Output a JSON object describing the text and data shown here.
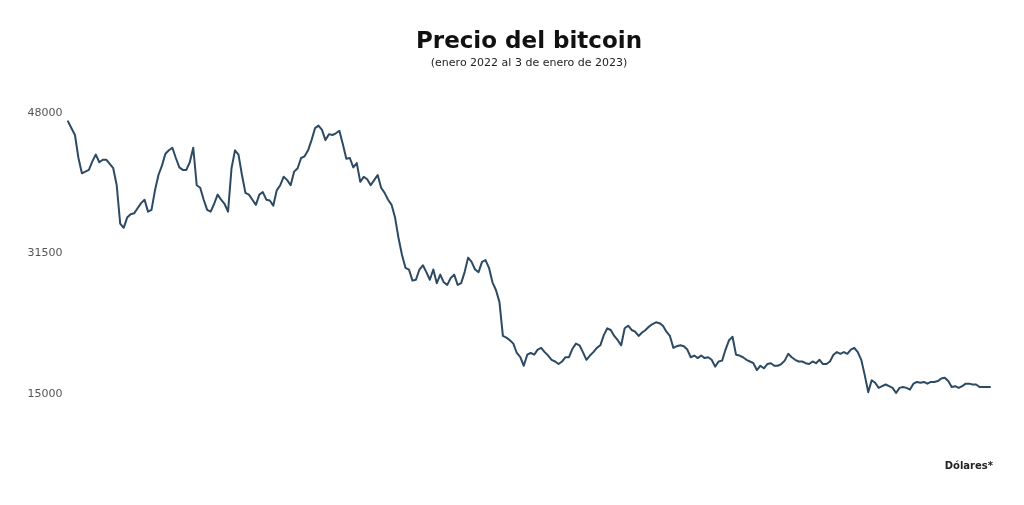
{
  "chart_data": {
    "type": "line",
    "title": "Precio del bitcoin",
    "subtitle": "(enero 2022 al 3 de enero de 2023)",
    "annotations": [
      "Dólares*"
    ],
    "categories": [
      null,
      null,
      null,
      null,
      null,
      null,
      null,
      null,
      null,
      null,
      null,
      null,
      null,
      null,
      null,
      null,
      null,
      null,
      null,
      null,
      null,
      null,
      null,
      null,
      null,
      null,
      null,
      null,
      null,
      null,
      null,
      null,
      null,
      null,
      null,
      null,
      null,
      null,
      null,
      null,
      null,
      null,
      null,
      null,
      null,
      null,
      null,
      null,
      null,
      null,
      null,
      null,
      null,
      null,
      null,
      null,
      null,
      null,
      null,
      null,
      null,
      null,
      null,
      null,
      null,
      null,
      null,
      null,
      null,
      null,
      null,
      null,
      null,
      null,
      null,
      null,
      null,
      null,
      null,
      null,
      null,
      null,
      null,
      null,
      null,
      null,
      null,
      null,
      null,
      null,
      null,
      null,
      null,
      null,
      null,
      null,
      null,
      null,
      null,
      null,
      null,
      null,
      null,
      null,
      null,
      null,
      null,
      null,
      null,
      null,
      null,
      null,
      null,
      null,
      null,
      null,
      null,
      null,
      null,
      null,
      null,
      null,
      null,
      null,
      null,
      null,
      null,
      null,
      null,
      null,
      null,
      null,
      null,
      null,
      null,
      null,
      null,
      null,
      null,
      null,
      null,
      null,
      null,
      null,
      null,
      null,
      null,
      null,
      null,
      null,
      null,
      null,
      null,
      null,
      null,
      null,
      null,
      null,
      null,
      null,
      null,
      null,
      null,
      null,
      null,
      null,
      null,
      null,
      null,
      null,
      null,
      null,
      null,
      null,
      null,
      null,
      null,
      null,
      null,
      null,
      null,
      null,
      null,
      null,
      null,
      null,
      null,
      null,
      null,
      null,
      null,
      null,
      null,
      null,
      null,
      null,
      null,
      null,
      null,
      null,
      null,
      null,
      null,
      null,
      null,
      null,
      null,
      null,
      null,
      null,
      null,
      null,
      null,
      null,
      null,
      null,
      null,
      null,
      null,
      null,
      null,
      null,
      null,
      null,
      null,
      null,
      null,
      null,
      null,
      null,
      null,
      null,
      null,
      null,
      null,
      null,
      null,
      null,
      null,
      null,
      null,
      null,
      null,
      null,
      null,
      null,
      null,
      null,
      null,
      null,
      null,
      null,
      null,
      null,
      null,
      null,
      null,
      null,
      null,
      null,
      null,
      null,
      null,
      null,
      null,
      null
    ],
    "series": [
      {
        "color": "#2c4a63",
        "values": [
          46900,
          46100,
          45300,
          42600,
          40800,
          41000,
          41200,
          42200,
          43000,
          42100,
          42400,
          42400,
          41900,
          41400,
          39400,
          34900,
          34400,
          35600,
          36000,
          36100,
          36700,
          37300,
          37700,
          36300,
          36500,
          38800,
          40600,
          41700,
          43100,
          43500,
          43800,
          42600,
          41500,
          41200,
          41200,
          42100,
          43800,
          39400,
          39100,
          37700,
          36500,
          36300,
          37200,
          38300,
          37700,
          37200,
          36300,
          41400,
          43500,
          43000,
          40600,
          38500,
          38300,
          37700,
          37100,
          38300,
          38600,
          37700,
          37600,
          37000,
          38800,
          39400,
          40400,
          40000,
          39400,
          41000,
          41400,
          42600,
          42800,
          43500,
          44700,
          46100,
          46400,
          45900,
          44700,
          45400,
          45300,
          45500,
          45800,
          44200,
          42500,
          42600,
          41500,
          42000,
          39800,
          40400,
          40100,
          39400,
          40000,
          40600,
          39100,
          38500,
          37700,
          37100,
          35600,
          33200,
          31200,
          29700,
          29500,
          28200,
          28300,
          29500,
          30000,
          29200,
          28300,
          29500,
          27900,
          28900,
          28000,
          27700,
          28500,
          28900,
          27700,
          27900,
          29200,
          30900,
          30400,
          29500,
          29200,
          30400,
          30600,
          29700,
          28000,
          27100,
          25700,
          21700,
          21500,
          21200,
          20800,
          19700,
          19200,
          18200,
          19500,
          19700,
          19500,
          20100,
          20300,
          19800,
          19400,
          18900,
          18700,
          18400,
          18700,
          19200,
          19200,
          20200,
          20800,
          20600,
          19800,
          18900,
          19400,
          19800,
          20300,
          20600,
          21800,
          22600,
          22400,
          21700,
          21200,
          20600,
          22600,
          22900,
          22400,
          22200,
          21700,
          22100,
          22400,
          22800,
          23100,
          23300,
          23200,
          22900,
          22200,
          21700,
          20300,
          20500,
          20600,
          20500,
          20100,
          19200,
          19400,
          19100,
          19400,
          19100,
          19200,
          18900,
          18100,
          18700,
          18800,
          20100,
          21200,
          21600,
          19500,
          19400,
          19200,
          18900,
          18700,
          18500,
          17700,
          18200,
          17900,
          18400,
          18500,
          18200,
          18200,
          18400,
          18800,
          19600,
          19200,
          18900,
          18700,
          18700,
          18500,
          18400,
          18700,
          18500,
          18900,
          18400,
          18400,
          18700,
          19500,
          19800,
          19600,
          19800,
          19600,
          20100,
          20300,
          19800,
          18900,
          17100,
          15100,
          16500,
          16200,
          15600,
          15800,
          16000,
          15800,
          15600,
          15000,
          15600,
          15700,
          15600,
          15400,
          16100,
          16300,
          16200,
          16300,
          16100,
          16300,
          16300,
          16400,
          16700,
          16800,
          16400,
          15700,
          15800,
          15600,
          15800,
          16100,
          16100,
          16000,
          16000,
          15700,
          15700,
          15700,
          15700
        ]
      }
    ],
    "ylim": [
      15000,
      48000
    ],
    "yticks": [
      15000,
      31500,
      48000
    ],
    "tick_labels": "y",
    "grid": false,
    "marker": "none",
    "line_style": "solid"
  }
}
